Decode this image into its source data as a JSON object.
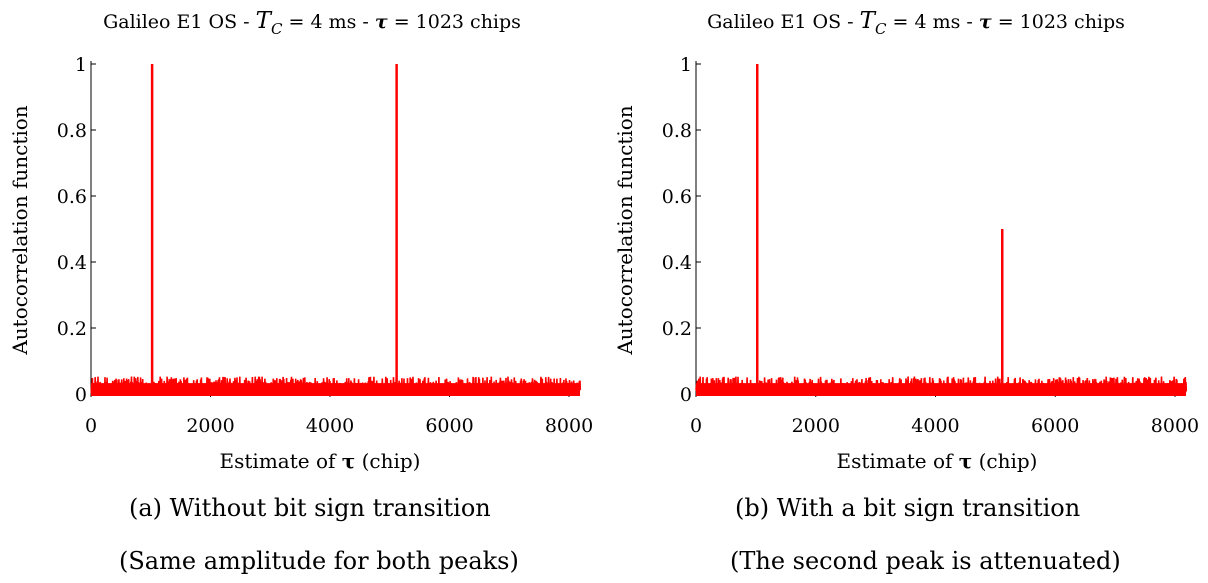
{
  "chart_data": [
    {
      "type": "line",
      "title_parts": {
        "pre": "Galileo E1 OS - ",
        "tc_var": "T",
        "tc_sub": "C",
        "tc_value": " = 4 ms - ",
        "tau_var": "τ",
        "tau_value": " = 1023 chips"
      },
      "xlabel_pre": "Estimate of ",
      "xlabel_sym": "τ",
      "xlabel_post": " (chip)",
      "ylabel": "Autocorrelation function",
      "xlim": [
        0,
        8184
      ],
      "ylim": [
        0,
        1
      ],
      "xticks": [
        0,
        2000,
        4000,
        6000,
        8000
      ],
      "xtick_labels": [
        "0",
        "2000",
        "4000",
        "6000",
        "8000"
      ],
      "yticks": [
        0,
        0.2,
        0.4,
        0.6,
        0.8,
        1
      ],
      "ytick_labels": [
        "0",
        "0.2",
        "0.4",
        "0.6",
        "0.8",
        "1"
      ],
      "grid": false,
      "color": "#ff0000",
      "series": [
        {
          "peaks": [
            {
              "x": 1023,
              "y": 1.0
            },
            {
              "x": 5115,
              "y": 1.0
            }
          ],
          "noise_floor_max": 0.05
        }
      ],
      "caption": "(a) Without bit sign transition",
      "subcaption": "(Same amplitude for both peaks)"
    },
    {
      "type": "line",
      "title_parts": {
        "pre": "Galileo E1 OS - ",
        "tc_var": "T",
        "tc_sub": "C",
        "tc_value": " = 4 ms - ",
        "tau_var": "τ",
        "tau_value": " = 1023 chips"
      },
      "xlabel_pre": "Estimate of ",
      "xlabel_sym": "τ",
      "xlabel_post": " (chip)",
      "ylabel": "Autocorrelation function",
      "xlim": [
        0,
        8184
      ],
      "ylim": [
        0,
        1
      ],
      "xticks": [
        0,
        2000,
        4000,
        6000,
        8000
      ],
      "xtick_labels": [
        "0",
        "2000",
        "4000",
        "6000",
        "8000"
      ],
      "yticks": [
        0,
        0.2,
        0.4,
        0.6,
        0.8,
        1
      ],
      "ytick_labels": [
        "0",
        "0.2",
        "0.4",
        "0.6",
        "0.8",
        "1"
      ],
      "grid": false,
      "color": "#ff0000",
      "series": [
        {
          "peaks": [
            {
              "x": 1023,
              "y": 1.0
            },
            {
              "x": 5115,
              "y": 0.5
            }
          ],
          "noise_floor_max": 0.05
        }
      ],
      "caption": "(b) With a bit sign transition",
      "subcaption": "(The second peak is attenuated)"
    }
  ]
}
